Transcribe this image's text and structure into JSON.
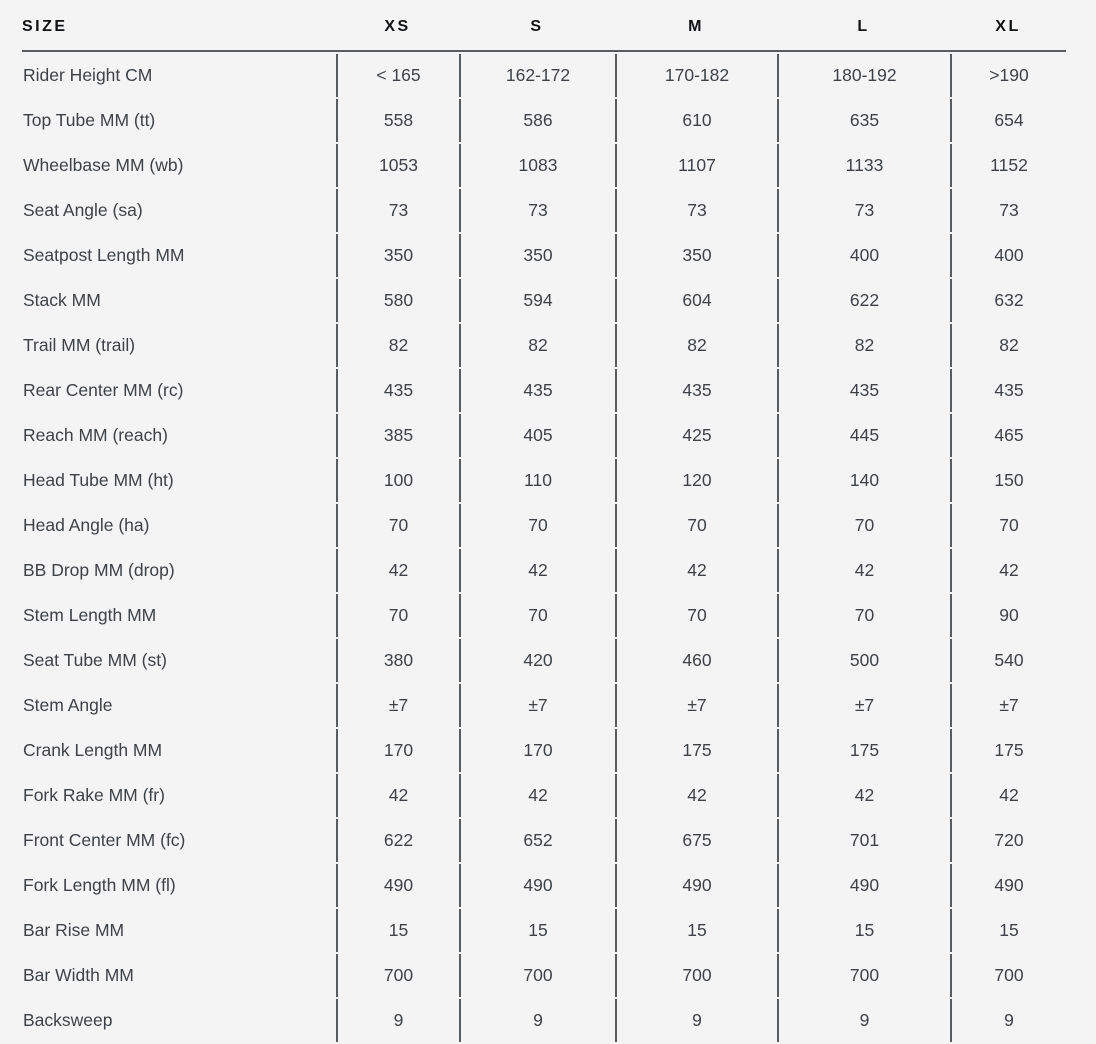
{
  "table": {
    "header": {
      "label": "SIZE",
      "sizes": [
        "XS",
        "S",
        "M",
        "L",
        "XL"
      ]
    },
    "rows": [
      {
        "label": "Rider Height CM",
        "values": [
          "< 165",
          "162-172",
          "170-182",
          "180-192",
          ">190"
        ]
      },
      {
        "label": "Top Tube MM (tt)",
        "values": [
          "558",
          "586",
          "610",
          "635",
          "654"
        ]
      },
      {
        "label": "Wheelbase MM (wb)",
        "values": [
          "1053",
          "1083",
          "1107",
          "1133",
          "1152"
        ]
      },
      {
        "label": "Seat Angle (sa)",
        "values": [
          "73",
          "73",
          "73",
          "73",
          "73"
        ]
      },
      {
        "label": "Seatpost Length MM",
        "values": [
          "350",
          "350",
          "350",
          "400",
          "400"
        ]
      },
      {
        "label": "Stack MM",
        "values": [
          "580",
          "594",
          "604",
          "622",
          "632"
        ]
      },
      {
        "label": "Trail MM (trail)",
        "values": [
          "82",
          "82",
          "82",
          "82",
          "82"
        ]
      },
      {
        "label": "Rear Center MM (rc)",
        "values": [
          "435",
          "435",
          "435",
          "435",
          "435"
        ]
      },
      {
        "label": "Reach MM (reach)",
        "values": [
          "385",
          "405",
          "425",
          "445",
          "465"
        ]
      },
      {
        "label": "Head Tube MM (ht)",
        "values": [
          "100",
          "110",
          "120",
          "140",
          "150"
        ]
      },
      {
        "label": "Head Angle (ha)",
        "values": [
          "70",
          "70",
          "70",
          "70",
          "70"
        ]
      },
      {
        "label": "BB Drop MM (drop)",
        "values": [
          "42",
          "42",
          "42",
          "42",
          "42"
        ]
      },
      {
        "label": "Stem Length MM",
        "values": [
          "70",
          "70",
          "70",
          "70",
          "90"
        ]
      },
      {
        "label": "Seat Tube MM (st)",
        "values": [
          "380",
          "420",
          "460",
          "500",
          "540"
        ]
      },
      {
        "label": "Stem Angle",
        "values": [
          "±7",
          "±7",
          "±7",
          "±7",
          "±7"
        ]
      },
      {
        "label": "Crank Length MM",
        "values": [
          "170",
          "170",
          "175",
          "175",
          "175"
        ]
      },
      {
        "label": "Fork Rake MM (fr)",
        "values": [
          "42",
          "42",
          "42",
          "42",
          "42"
        ]
      },
      {
        "label": "Front Center MM (fc)",
        "values": [
          "622",
          "652",
          "675",
          "701",
          "720"
        ]
      },
      {
        "label": "Fork Length MM (fl)",
        "values": [
          "490",
          "490",
          "490",
          "490",
          "490"
        ]
      },
      {
        "label": "Bar Rise MM",
        "values": [
          "15",
          "15",
          "15",
          "15",
          "15"
        ]
      },
      {
        "label": "Bar Width MM",
        "values": [
          "700",
          "700",
          "700",
          "700",
          "700"
        ]
      },
      {
        "label": "Backsweep",
        "values": [
          "9",
          "9",
          "9",
          "9",
          "9"
        ]
      }
    ],
    "colors": {
      "background": "#f4f4f5",
      "header_text": "#101214",
      "body_text": "#3e4246",
      "rule": "#595c5f"
    }
  }
}
